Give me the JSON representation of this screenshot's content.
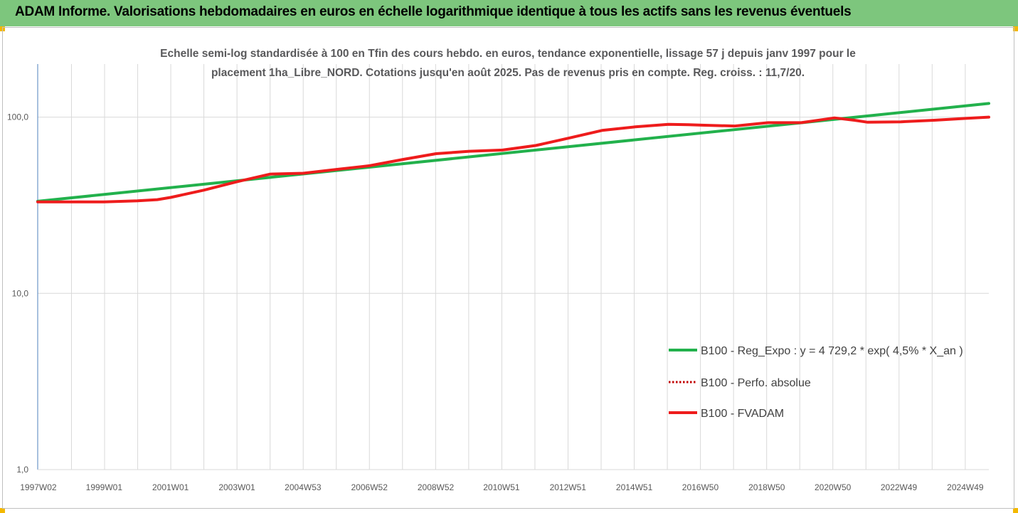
{
  "header": {
    "title": "ADAM Informe. Valorisations hebdomadaires en euros en échelle logarithmique identique à tous les actifs sans les revenus éventuels"
  },
  "colors": {
    "header_bg": "#7dc67d",
    "corner_accent": "#f3b800",
    "regression": "#22b14c",
    "fvadam": "#ee1c1c",
    "perf_absolue": "#c00000",
    "grid": "#d9d9d9",
    "axis": "#4f81bd"
  },
  "chart_data": {
    "type": "line",
    "title_lines": [
      "Echelle semi-log standardisée à 100 en Tfin des cours hebdo. en euros, tendance exponentielle, lissage 57 j depuis janv 1997 pour le",
      "placement 1ha_Libre_NORD. Cotations jusqu'en août 2025. Pas de revenus pris en compte. Reg. croiss. : 11,7/20."
    ],
    "y_scale": "log",
    "ylim": [
      1,
      200
    ],
    "y_ticks": [
      {
        "value": 1,
        "label": "1,0"
      },
      {
        "value": 10,
        "label": "10,0"
      },
      {
        "value": 100,
        "label": "100,0"
      }
    ],
    "x_range": [
      1997.0,
      2025.65
    ],
    "x_tick_labels": [
      "1997W02",
      "1999W01",
      "2001W01",
      "2003W01",
      "2004W53",
      "2006W52",
      "2008W52",
      "2010W51",
      "2012W51",
      "2014W51",
      "2016W50",
      "2018W50",
      "2020W50",
      "2022W49",
      "2024W49"
    ],
    "x_tick_years": [
      1997.02,
      1999.0,
      2001.0,
      2003.0,
      2004.99,
      2006.99,
      2008.99,
      2010.97,
      2012.97,
      2014.97,
      2016.96,
      2018.96,
      2020.95,
      2022.94,
      2024.94
    ],
    "grid": true,
    "legend_position": "lower-right",
    "legend": [
      {
        "label": "B100 - Reg_Expo : y = 4 729,2 * exp( 4,5% *  X_an )",
        "style": "solid-green"
      },
      {
        "label": "B100 - Perfo. absolue",
        "style": "dotted-red"
      },
      {
        "label": "B100 - FVADAM",
        "style": "solid-red"
      }
    ],
    "series": [
      {
        "name": "B100 - Reg_Expo : y = 4 729,2 * exp( 4,5% *  X_an )",
        "x": [
          1997.0,
          2025.65
        ],
        "values": [
          33.3,
          119.5
        ]
      },
      {
        "name": "B100 - Perfo. absolue",
        "x": [
          1997.0,
          1998.0,
          1999.0,
          2000.0,
          2000.6,
          2001.0,
          2002.0,
          2003.0,
          2004.0,
          2005.0,
          2006.0,
          2007.0,
          2008.0,
          2009.0,
          2010.0,
          2011.0,
          2012.0,
          2013.0,
          2014.0,
          2015.0,
          2016.0,
          2016.6,
          2017.0,
          2018.0,
          2019.0,
          2020.0,
          2021.0,
          2021.6,
          2022.0,
          2023.0,
          2024.0,
          2025.0,
          2025.65
        ],
        "values": [
          33.0,
          33.0,
          33.0,
          33.5,
          34.0,
          35.0,
          38.5,
          43.0,
          47.5,
          48.0,
          50.5,
          53.0,
          57.5,
          62.0,
          64.0,
          65.0,
          69.0,
          76.0,
          84.0,
          88.0,
          91.0,
          90.5,
          90.0,
          89.0,
          93.0,
          93.0,
          99.0,
          96.0,
          93.5,
          94.0,
          96.0,
          98.5,
          100.0
        ]
      },
      {
        "name": "B100 - FVADAM",
        "x": [
          1997.0,
          1998.0,
          1999.0,
          2000.0,
          2000.6,
          2001.0,
          2002.0,
          2003.0,
          2004.0,
          2005.0,
          2006.0,
          2007.0,
          2008.0,
          2009.0,
          2010.0,
          2011.0,
          2012.0,
          2013.0,
          2014.0,
          2015.0,
          2016.0,
          2016.6,
          2017.0,
          2018.0,
          2019.0,
          2020.0,
          2021.0,
          2021.6,
          2022.0,
          2023.0,
          2024.0,
          2025.0,
          2025.65
        ],
        "values": [
          33.0,
          33.0,
          33.0,
          33.5,
          34.0,
          35.0,
          38.5,
          43.0,
          47.5,
          48.0,
          50.5,
          53.0,
          57.5,
          62.0,
          64.0,
          65.0,
          69.0,
          76.0,
          84.0,
          88.0,
          91.0,
          90.5,
          90.0,
          89.0,
          93.0,
          93.0,
          99.0,
          96.0,
          93.5,
          94.0,
          96.0,
          98.5,
          100.0
        ]
      }
    ]
  }
}
